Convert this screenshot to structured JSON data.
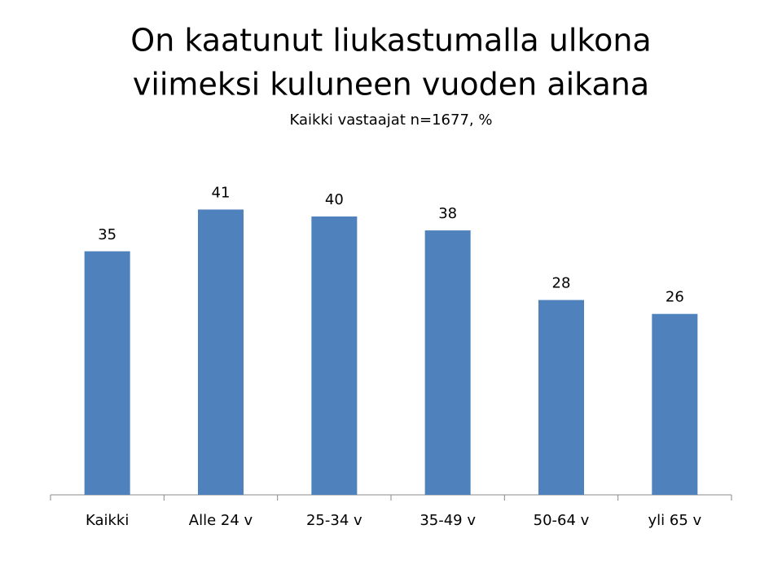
{
  "chart_data": {
    "type": "bar",
    "title": [
      "On kaatunut liukastumalla ulkona",
      "viimeksi kuluneen vuoden aikana"
    ],
    "subtitle": "Kaikki vastaajat n=1677, %",
    "categories": [
      "Kaikki",
      "Alle 24 v",
      "25-34 v",
      "35-49 v",
      "50-64 v",
      "yli 65 v"
    ],
    "values": [
      35,
      41,
      40,
      38,
      28,
      26
    ],
    "color": "#4f81bd"
  }
}
